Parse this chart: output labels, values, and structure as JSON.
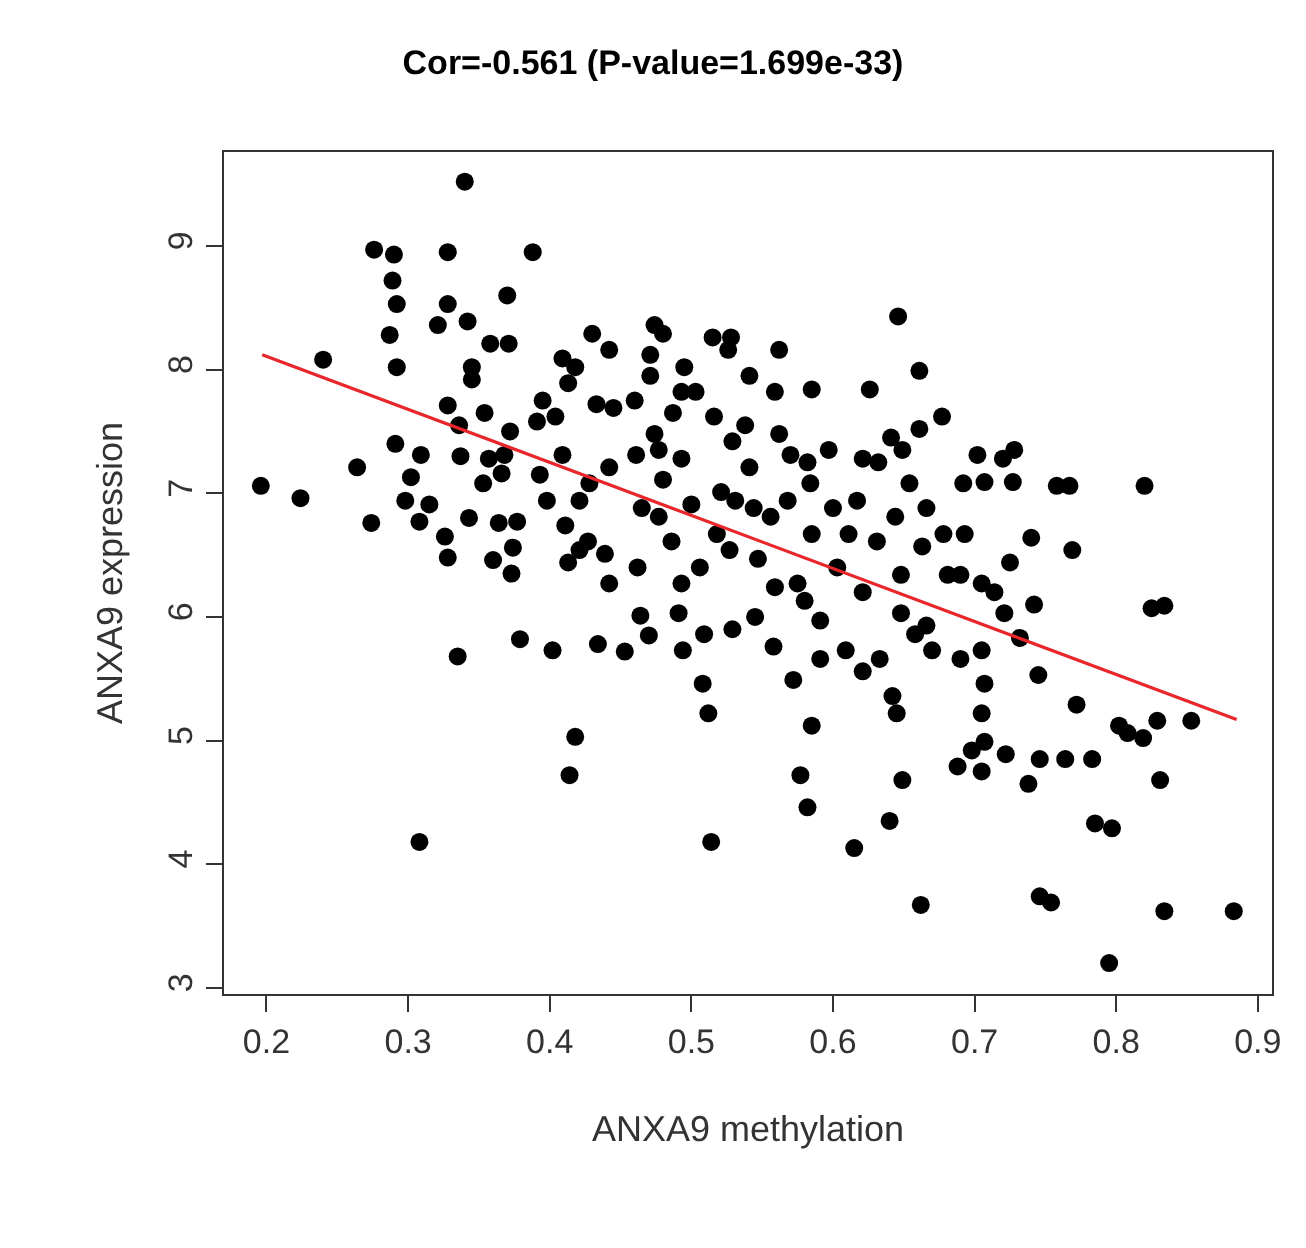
{
  "chart_data": {
    "type": "scatter",
    "title": "Cor=-0.561 (P-value=1.699e-33)",
    "xlabel": "ANXA9 methylation",
    "ylabel": "ANXA9 expression",
    "xlim": [
      0.17,
      0.91
    ],
    "ylim": [
      2.95,
      9.76
    ],
    "xticks": [
      0.2,
      0.3,
      0.4,
      0.5,
      0.6,
      0.7,
      0.8,
      0.9
    ],
    "yticks": [
      3,
      4,
      5,
      6,
      7,
      8,
      9
    ],
    "legend": false,
    "marker": "circle",
    "series": [
      {
        "color": "#000000",
        "x": [
          0.196,
          0.224,
          0.24,
          0.264,
          0.274,
          0.276,
          0.29,
          0.289,
          0.292,
          0.287,
          0.292,
          0.291,
          0.302,
          0.298,
          0.309,
          0.308,
          0.315,
          0.308,
          0.321,
          0.328,
          0.328,
          0.328,
          0.326,
          0.328,
          0.335,
          0.34,
          0.342,
          0.345,
          0.345,
          0.336,
          0.337,
          0.343,
          0.354,
          0.357,
          0.353,
          0.36,
          0.358,
          0.37,
          0.371,
          0.364,
          0.368,
          0.366,
          0.374,
          0.373,
          0.377,
          0.379,
          0.388,
          0.372,
          0.391,
          0.395,
          0.393,
          0.398,
          0.402,
          0.404,
          0.409,
          0.413,
          0.409,
          0.411,
          0.413,
          0.418,
          0.414,
          0.418,
          0.421,
          0.421,
          0.43,
          0.433,
          0.428,
          0.427,
          0.434,
          0.442,
          0.445,
          0.442,
          0.442,
          0.439,
          0.453,
          0.46,
          0.461,
          0.462,
          0.464,
          0.47,
          0.465,
          0.474,
          0.48,
          0.471,
          0.471,
          0.474,
          0.477,
          0.48,
          0.477,
          0.487,
          0.486,
          0.493,
          0.495,
          0.493,
          0.493,
          0.491,
          0.494,
          0.5,
          0.503,
          0.506,
          0.508,
          0.512,
          0.509,
          0.514,
          0.515,
          0.516,
          0.521,
          0.518,
          0.526,
          0.528,
          0.529,
          0.531,
          0.527,
          0.529,
          0.541,
          0.538,
          0.541,
          0.544,
          0.547,
          0.545,
          0.562,
          0.559,
          0.562,
          0.556,
          0.559,
          0.558,
          0.57,
          0.572,
          0.568,
          0.575,
          0.585,
          0.582,
          0.584,
          0.585,
          0.58,
          0.591,
          0.585,
          0.577,
          0.582,
          0.591,
          0.597,
          0.6,
          0.603,
          0.609,
          0.611,
          0.617,
          0.615,
          0.621,
          0.621,
          0.626,
          0.621,
          0.632,
          0.631,
          0.633,
          0.641,
          0.644,
          0.64,
          0.642,
          0.645,
          0.646,
          0.649,
          0.648,
          0.648,
          0.649,
          0.654,
          0.658,
          0.661,
          0.661,
          0.662,
          0.663,
          0.666,
          0.67,
          0.666,
          0.677,
          0.678,
          0.681,
          0.69,
          0.692,
          0.693,
          0.69,
          0.688,
          0.702,
          0.707,
          0.705,
          0.705,
          0.707,
          0.705,
          0.707,
          0.705,
          0.698,
          0.714,
          0.72,
          0.721,
          0.722,
          0.727,
          0.728,
          0.725,
          0.732,
          0.738,
          0.74,
          0.742,
          0.745,
          0.746,
          0.746,
          0.754,
          0.758,
          0.767,
          0.769,
          0.772,
          0.764,
          0.783,
          0.785,
          0.797,
          0.795,
          0.802,
          0.808,
          0.819,
          0.82,
          0.825,
          0.834,
          0.829,
          0.831,
          0.834,
          0.853,
          0.883
        ],
        "values": [
          7.06,
          6.96,
          8.08,
          7.21,
          6.76,
          8.97,
          8.93,
          8.72,
          8.53,
          8.28,
          8.02,
          7.4,
          7.13,
          6.94,
          7.31,
          6.77,
          6.91,
          4.18,
          8.36,
          8.95,
          8.53,
          7.71,
          6.65,
          6.48,
          5.68,
          9.52,
          8.39,
          8.02,
          7.92,
          7.55,
          7.3,
          6.8,
          7.65,
          7.28,
          7.08,
          6.46,
          8.21,
          8.6,
          8.21,
          6.76,
          7.31,
          7.16,
          6.56,
          6.35,
          6.77,
          5.82,
          8.95,
          7.5,
          7.58,
          7.75,
          7.15,
          6.94,
          5.73,
          7.62,
          8.09,
          7.89,
          7.31,
          6.74,
          6.44,
          5.03,
          4.72,
          8.02,
          6.94,
          6.54,
          8.29,
          7.72,
          7.08,
          6.61,
          5.78,
          8.16,
          7.69,
          7.21,
          6.27,
          6.51,
          5.72,
          7.75,
          7.31,
          6.4,
          6.01,
          5.85,
          6.88,
          8.36,
          8.29,
          8.12,
          7.95,
          7.48,
          7.35,
          7.11,
          6.81,
          7.65,
          6.61,
          7.28,
          8.02,
          7.82,
          6.27,
          6.03,
          5.73,
          6.91,
          7.82,
          6.4,
          5.46,
          5.22,
          5.86,
          4.18,
          8.26,
          7.62,
          7.01,
          6.67,
          8.16,
          8.26,
          7.42,
          6.94,
          6.54,
          5.9,
          7.95,
          7.55,
          7.21,
          6.88,
          6.47,
          6.0,
          8.16,
          7.82,
          7.48,
          6.81,
          6.24,
          5.76,
          7.31,
          5.49,
          6.94,
          6.27,
          7.84,
          7.25,
          7.08,
          6.67,
          6.13,
          5.97,
          5.12,
          4.72,
          4.46,
          5.66,
          7.35,
          6.88,
          6.4,
          5.73,
          6.67,
          6.94,
          4.13,
          6.2,
          5.56,
          7.84,
          7.28,
          7.25,
          6.61,
          5.66,
          7.45,
          6.81,
          4.35,
          5.36,
          5.22,
          8.43,
          7.35,
          6.34,
          6.03,
          4.68,
          7.08,
          5.86,
          7.99,
          7.52,
          3.67,
          6.57,
          6.88,
          5.73,
          5.93,
          7.62,
          6.67,
          6.34,
          6.34,
          7.08,
          6.67,
          5.66,
          4.79,
          7.31,
          7.09,
          6.27,
          5.73,
          5.46,
          5.22,
          4.99,
          4.75,
          4.92,
          6.2,
          7.28,
          6.03,
          4.89,
          7.09,
          7.35,
          6.44,
          5.83,
          4.65,
          6.64,
          6.1,
          5.53,
          4.85,
          3.74,
          3.69,
          7.06,
          7.06,
          6.54,
          5.29,
          4.85,
          4.85,
          4.33,
          4.29,
          3.2,
          5.12,
          5.06,
          5.02,
          7.06,
          6.07,
          6.09,
          5.16,
          4.68,
          3.62,
          5.16,
          3.62
        ]
      },
      {
        "type": "line",
        "color": "#e8262b",
        "marker": "none",
        "line_style": "solid",
        "x": [
          0.197,
          0.885
        ],
        "values": [
          8.12,
          5.17
        ]
      }
    ]
  }
}
